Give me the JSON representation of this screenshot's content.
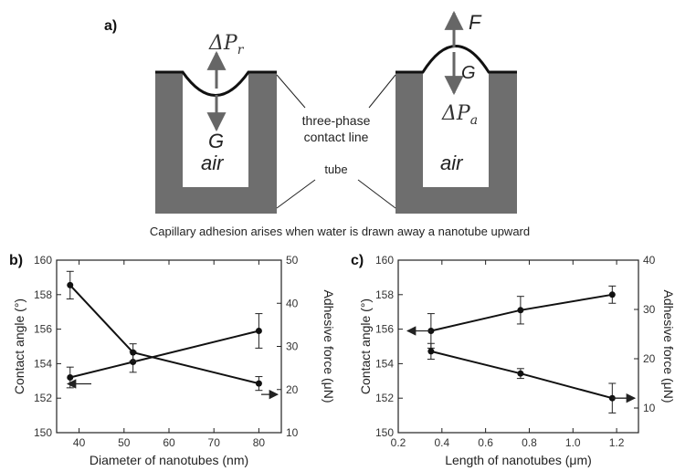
{
  "figure": {
    "panel_a": {
      "label": "a)",
      "left_symbols": {
        "pressure": "ΔP",
        "pressure_sub": "r",
        "gravity": "G",
        "medium": "air"
      },
      "right_symbols": {
        "force": "F",
        "gravity": "G",
        "pressure": "ΔP",
        "pressure_sub": "a",
        "medium": "air"
      },
      "center_labels": {
        "line1": "three-phase",
        "line2": "contact line",
        "tube": "tube"
      },
      "caption": "Capillary adhesion arises when water is drawn away a nanotube upward",
      "colors": {
        "tube": "#6e6e6e",
        "arrow": "#666666",
        "meniscus": "#111111"
      }
    }
  },
  "chart_data": [
    {
      "panel": "b)",
      "type": "line",
      "xlabel": "Diameter of nanotubes (nm)",
      "ylabel_left": "Contact angle (°)",
      "ylabel_right": "Adhesive force (μN)",
      "xlim": [
        35,
        85
      ],
      "xticks": [
        40,
        50,
        60,
        70,
        80
      ],
      "ylim_left": [
        150,
        160
      ],
      "yticks_left": [
        150,
        152,
        154,
        156,
        158,
        160
      ],
      "ylim_right": [
        10,
        50
      ],
      "yticks_right": [
        10,
        20,
        30,
        40,
        50
      ],
      "grid": false,
      "series": [
        {
          "axis": "left",
          "x": [
            38,
            52,
            80
          ],
          "y": [
            153.2,
            154.1,
            155.9
          ],
          "err": [
            0.6,
            0.6,
            1.0
          ],
          "arrow": "left"
        },
        {
          "axis": "right",
          "x": [
            38,
            52,
            80
          ],
          "y": [
            44.2,
            28.6,
            21.4
          ],
          "err": [
            3.2,
            2.0,
            1.6
          ],
          "arrow": "right"
        }
      ]
    },
    {
      "panel": "c)",
      "type": "line",
      "xlabel": "Length of nanotubes (μm)",
      "ylabel_left": "Contact angle (°)",
      "ylabel_right": "Adhesive force (μN)",
      "xlim": [
        0.2,
        1.3
      ],
      "xticks": [
        0.2,
        0.4,
        0.6,
        0.8,
        1.0,
        1.2
      ],
      "xtick_labels": [
        "0.2",
        "0.4",
        "0.6",
        "0.8",
        "1.0",
        "1.2"
      ],
      "ylim_left": [
        150,
        160
      ],
      "yticks_left": [
        150,
        152,
        154,
        156,
        158,
        160
      ],
      "ylim_right": [
        5,
        40
      ],
      "yticks_right": [
        10,
        20,
        30,
        40
      ],
      "grid": false,
      "series": [
        {
          "axis": "left",
          "x": [
            0.35,
            0.76,
            1.18
          ],
          "y": [
            155.9,
            157.1,
            158.0
          ],
          "err": [
            1.0,
            0.8,
            0.5
          ],
          "arrow": "left"
        },
        {
          "axis": "right",
          "x": [
            0.35,
            0.76,
            1.18
          ],
          "y": [
            21.5,
            17.0,
            12.0
          ],
          "err": [
            1.6,
            1.0,
            3.0
          ],
          "arrow": "right"
        }
      ]
    }
  ]
}
